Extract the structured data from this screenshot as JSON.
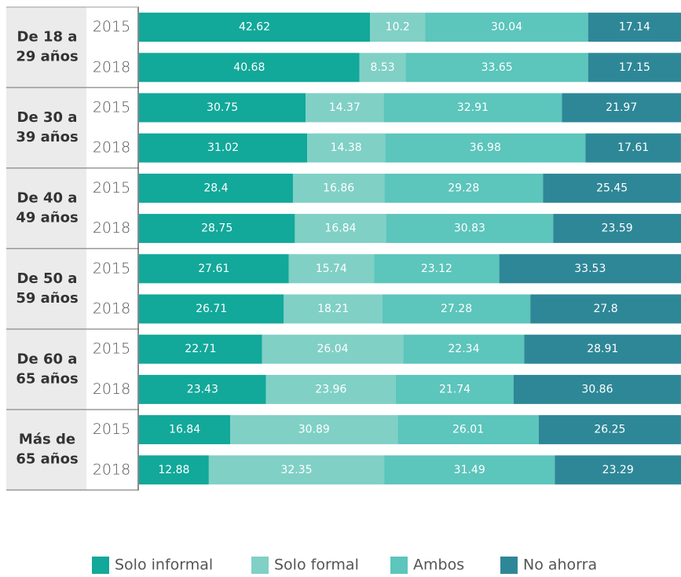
{
  "chart_data": {
    "type": "stacked_bar_horizontal",
    "groups": [
      {
        "label": [
          "De 18 a",
          "29 años"
        ],
        "categories": [
          "2015",
          "2018"
        ]
      },
      {
        "label": [
          "De 30 a",
          "39 años"
        ],
        "categories": [
          "2015",
          "2018"
        ]
      },
      {
        "label": [
          "De 40 a",
          "49 años"
        ],
        "categories": [
          "2015",
          "2018"
        ]
      },
      {
        "label": [
          "De 50 a",
          "59 años"
        ],
        "categories": [
          "2015",
          "2018"
        ]
      },
      {
        "label": [
          "De 60 a",
          "65 años"
        ],
        "categories": [
          "2015",
          "2018"
        ]
      },
      {
        "label": [
          "Más de",
          "65 años"
        ],
        "categories": [
          "2015",
          "2018"
        ]
      }
    ],
    "series": [
      {
        "name": "Solo informal",
        "color": "#12a89a",
        "values": [
          42.62,
          40.68,
          30.75,
          31.02,
          28.4,
          28.75,
          27.61,
          26.71,
          22.71,
          23.43,
          16.84,
          12.88
        ]
      },
      {
        "name": "Solo formal",
        "color": "#80d0c6",
        "values": [
          10.2,
          8.53,
          14.37,
          14.38,
          16.86,
          16.84,
          15.74,
          18.21,
          26.04,
          23.96,
          30.89,
          32.35
        ]
      },
      {
        "name": "Ambos",
        "color": "#5cc5bc",
        "values": [
          30.04,
          33.65,
          32.91,
          36.98,
          29.28,
          30.83,
          23.12,
          27.28,
          22.34,
          21.74,
          26.01,
          31.49
        ]
      },
      {
        "name": "No ahorra",
        "color": "#2e8797",
        "values": [
          17.14,
          17.15,
          21.97,
          17.61,
          25.45,
          23.59,
          33.53,
          27.8,
          28.91,
          30.86,
          26.25,
          23.29
        ]
      }
    ],
    "xlim": [
      0,
      100
    ]
  }
}
